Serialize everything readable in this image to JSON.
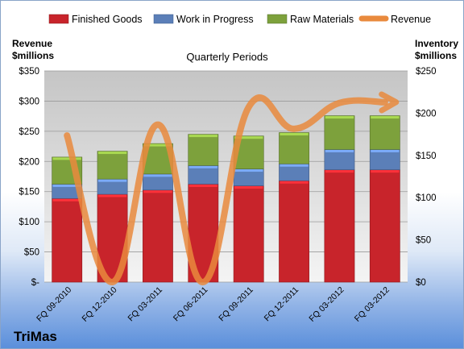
{
  "brand": "TriMas",
  "chart_data": {
    "type": "bar",
    "title": "Quarterly Periods",
    "categories": [
      "FQ 09-2010",
      "FQ 12-2010",
      "FQ 03-2011",
      "FQ 06-2011",
      "FQ 09-2011",
      "FQ 12-2011",
      "FQ 03-2012",
      "FQ 03-2012"
    ],
    "left_axis": {
      "label_line1": "Revenue",
      "label_line2": "$millions",
      "min": 0,
      "max": 350,
      "step": 50,
      "tick_labels": [
        "$-",
        "$50",
        "$100",
        "$150",
        "$200",
        "$250",
        "$300",
        "$350"
      ]
    },
    "right_axis": {
      "label_line1": "Inventory",
      "label_line2": "$millions",
      "min": 0,
      "max": 250,
      "step": 50,
      "tick_labels": [
        "$0",
        "$50",
        "$100",
        "$150",
        "$200",
        "$250"
      ]
    },
    "series": [
      {
        "name": "Finished Goods",
        "type": "bar",
        "axis": "right",
        "color": "#c8242b",
        "values": [
          99,
          104,
          109,
          116,
          114,
          120,
          133,
          133
        ]
      },
      {
        "name": "Work in Progress",
        "type": "bar",
        "axis": "right",
        "color": "#5b7fb8",
        "values": [
          17,
          18,
          19,
          22,
          20,
          20,
          24,
          24
        ]
      },
      {
        "name": "Raw Materials",
        "type": "bar",
        "axis": "right",
        "color": "#7da13c",
        "values": [
          32,
          33,
          36,
          37,
          39,
          37,
          40,
          40
        ]
      },
      {
        "name": "Revenue",
        "type": "line",
        "axis": "left",
        "color": "#e98a3d",
        "values": [
          243,
          0,
          261,
          0,
          290,
          254,
          297,
          298
        ]
      }
    ],
    "legend_position": "top",
    "grid": true
  }
}
